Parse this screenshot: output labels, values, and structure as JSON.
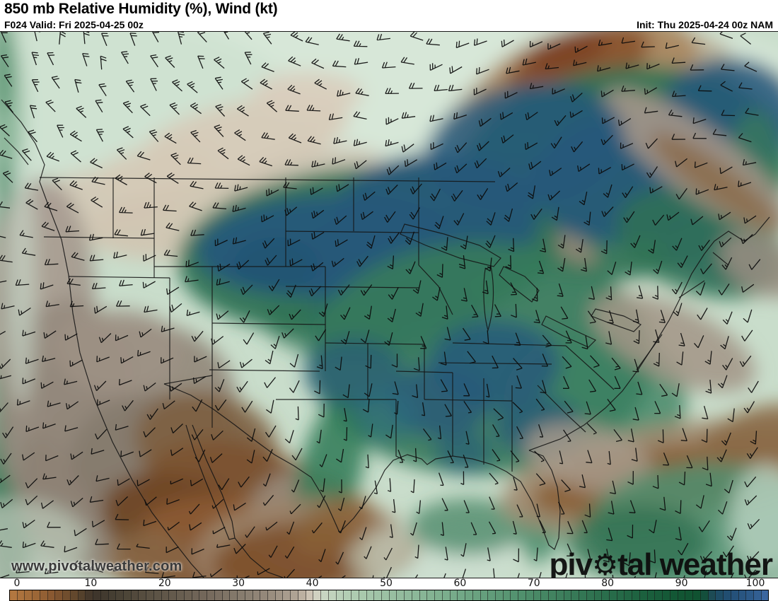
{
  "header": {
    "title": "850 mb Relative Humidity (%), Wind (kt)",
    "valid_label": "F024 Valid: Fri 2025-04-25 00z",
    "init_label": "Init: Thu 2025-04-24 00z NAM"
  },
  "map": {
    "watermark": "www.pivotalweather.com",
    "logo": {
      "left": "piv",
      "gear": "⚙",
      "right": "tal weather"
    },
    "wind": {
      "barb_color": "#0b0b0b",
      "grid_spacing": 34,
      "shaft_length": 19
    },
    "border_color": "#141414",
    "base_color": "#c9ddcb",
    "humidity_blobs": [
      [
        550,
        70,
        600,
        110,
        0,
        "#d7e7d8",
        1
      ],
      [
        160,
        140,
        280,
        160,
        0,
        "#cfe2d1",
        1
      ],
      [
        6,
        120,
        26,
        130,
        0,
        "#7fae90",
        0.85
      ],
      [
        4,
        44,
        18,
        70,
        0,
        "#55926f",
        0.7
      ],
      [
        8,
        480,
        26,
        300,
        0,
        "#4e8e6e",
        0.9
      ],
      [
        14,
        660,
        40,
        140,
        0,
        "#3b7d5c",
        0.85
      ],
      [
        345,
        150,
        150,
        52,
        -12,
        "#d7cab7",
        0.92
      ],
      [
        150,
        235,
        115,
        42,
        -6,
        "#d2c6b4",
        0.85
      ],
      [
        435,
        88,
        78,
        32,
        0,
        "#d9cdbc",
        0.9
      ],
      [
        305,
        262,
        185,
        55,
        -8,
        "#d0c4b1",
        0.92
      ],
      [
        432,
        212,
        115,
        42,
        -14,
        "#cdc1af",
        0.8
      ],
      [
        222,
        196,
        90,
        36,
        -10,
        "#d5c9b7",
        0.8
      ],
      [
        835,
        92,
        210,
        85,
        -14,
        "#b7a98f",
        0.85
      ],
      [
        828,
        62,
        165,
        70,
        -16,
        "#aa8962",
        0.95
      ],
      [
        818,
        42,
        105,
        48,
        -18,
        "#8a5530",
        0.95
      ],
      [
        800,
        30,
        60,
        26,
        -18,
        "#7c4423",
        0.9
      ],
      [
        880,
        200,
        240,
        150,
        -8,
        "#2f7254",
        0.92
      ],
      [
        895,
        205,
        150,
        92,
        -8,
        "#26587a",
        0.92
      ],
      [
        1032,
        118,
        98,
        82,
        0,
        "#26587a",
        0.88
      ],
      [
        1008,
        312,
        82,
        46,
        18,
        "#26587a",
        0.8
      ],
      [
        960,
        160,
        60,
        40,
        0,
        "#1f4e6e",
        0.5
      ],
      [
        992,
        300,
        125,
        72,
        18,
        "#2f7254",
        0.8
      ],
      [
        1068,
        200,
        40,
        90,
        0,
        "#3a7d5b",
        0.7
      ],
      [
        985,
        182,
        160,
        48,
        36,
        "#a39689",
        0.92
      ],
      [
        1012,
        212,
        112,
        26,
        36,
        "#8a6b49",
        0.85
      ],
      [
        1078,
        330,
        66,
        40,
        28,
        "#9b8e81",
        0.85
      ],
      [
        668,
        298,
        175,
        44,
        7,
        "#978977",
        0.92
      ],
      [
        662,
        300,
        132,
        26,
        7,
        "#6e5f50",
        0.9
      ],
      [
        520,
        310,
        270,
        120,
        -4,
        "#2f7254",
        0.95
      ],
      [
        462,
        302,
        185,
        72,
        -3,
        "#26587a",
        0.95
      ],
      [
        618,
        262,
        145,
        92,
        0,
        "#26587a",
        0.92
      ],
      [
        742,
        162,
        142,
        88,
        -10,
        "#26587a",
        0.85
      ],
      [
        560,
        398,
        122,
        62,
        0,
        "#26587a",
        0.85
      ],
      [
        470,
        420,
        100,
        42,
        8,
        "#2f7254",
        0.7
      ],
      [
        390,
        330,
        60,
        40,
        0,
        "#1f516f",
        0.6
      ],
      [
        680,
        462,
        245,
        165,
        0,
        "#367a5b",
        0.92
      ],
      [
        842,
        520,
        130,
        95,
        0,
        "#3d8262",
        0.8
      ],
      [
        700,
        470,
        92,
        62,
        0,
        "#26587a",
        0.8
      ],
      [
        622,
        522,
        72,
        52,
        0,
        "#26587a",
        0.78
      ],
      [
        762,
        558,
        62,
        42,
        0,
        "#26587a",
        0.72
      ],
      [
        656,
        594,
        40,
        30,
        0,
        "#26587a",
        0.6
      ],
      [
        952,
        440,
        125,
        52,
        24,
        "#a39688",
        0.88
      ],
      [
        58,
        392,
        78,
        185,
        0,
        "#a49a8e",
        0.95
      ],
      [
        96,
        542,
        100,
        165,
        0,
        "#978c80",
        0.95
      ],
      [
        136,
        644,
        112,
        122,
        0,
        "#8d8174",
        0.92
      ],
      [
        60,
        300,
        46,
        90,
        0,
        "#aaa094",
        0.85
      ],
      [
        30,
        350,
        20,
        180,
        0,
        "#cde0d0",
        0.6
      ],
      [
        192,
        520,
        142,
        112,
        0,
        "#93887b",
        0.92
      ],
      [
        232,
        602,
        132,
        92,
        0,
        "#867a6c",
        0.92
      ],
      [
        168,
        452,
        90,
        60,
        0,
        "#9d9285",
        0.85
      ],
      [
        292,
        582,
        102,
        72,
        10,
        "#7d5e3e",
        0.85
      ],
      [
        332,
        652,
        132,
        72,
        10,
        "#7c5331",
        0.92
      ],
      [
        262,
        702,
        122,
        72,
        18,
        "#6f4726",
        0.92
      ],
      [
        362,
        722,
        162,
        62,
        8,
        "#8a5a31",
        0.95
      ],
      [
        302,
        760,
        142,
        40,
        0,
        "#7c4e28",
        0.9
      ],
      [
        210,
        745,
        60,
        40,
        0,
        "#8a6a4a",
        0.8
      ],
      [
        318,
        712,
        16,
        22,
        0,
        "#9dc2a6",
        0.7
      ],
      [
        432,
        692,
        82,
        72,
        0,
        "#9a8d7e",
        0.88
      ],
      [
        482,
        748,
        112,
        44,
        -10,
        "#82572f",
        0.92
      ],
      [
        467,
        622,
        44,
        112,
        14,
        "#2f7a55",
        0.85
      ],
      [
        500,
        482,
        70,
        50,
        0,
        "#26587a",
        0.65
      ],
      [
        545,
        540,
        48,
        38,
        0,
        "#2d6a80",
        0.55
      ],
      [
        422,
        732,
        152,
        72,
        -6,
        "#9b8268",
        0.9
      ],
      [
        412,
        746,
        112,
        52,
        -6,
        "#7c4f2a",
        0.9
      ],
      [
        472,
        700,
        62,
        36,
        -28,
        "#8a6038",
        0.8
      ],
      [
        610,
        742,
        120,
        44,
        0,
        "#cfe0d2",
        0.6
      ],
      [
        662,
        700,
        84,
        40,
        0,
        "#3b7d5c",
        0.7
      ],
      [
        772,
        692,
        30,
        62,
        18,
        "#3f8563",
        0.8
      ],
      [
        952,
        628,
        245,
        72,
        -9,
        "#a08a70",
        0.92
      ],
      [
        942,
        632,
        192,
        46,
        -9,
        "#8a5f35",
        0.9
      ],
      [
        1062,
        582,
        92,
        46,
        -24,
        "#8a6a47",
        0.88
      ],
      [
        832,
        602,
        92,
        46,
        14,
        "#a79a8b",
        0.85
      ],
      [
        1002,
        702,
        172,
        92,
        0,
        "#4f8f70",
        0.85
      ],
      [
        902,
        722,
        102,
        52,
        0,
        "#2f7050",
        0.8
      ],
      [
        1085,
        688,
        52,
        78,
        0,
        "#cfe0d2",
        0.65
      ],
      [
        24,
        724,
        100,
        62,
        0,
        "#b6c2b3",
        0.8
      ]
    ]
  },
  "colorbar": {
    "unit": "%",
    "min": 0,
    "max": 100,
    "tick_step": 10,
    "ticks": [
      "0",
      "10",
      "20",
      "30",
      "40",
      "50",
      "60",
      "70",
      "80",
      "90",
      "100"
    ],
    "cell_count": 100,
    "stops": [
      [
        0,
        "#b57a41"
      ],
      [
        3,
        "#a06a38"
      ],
      [
        6,
        "#85562f"
      ],
      [
        9,
        "#5c452c"
      ],
      [
        11,
        "#3d342a"
      ],
      [
        14,
        "#474033"
      ],
      [
        18,
        "#584f41"
      ],
      [
        22,
        "#665c4e"
      ],
      [
        26,
        "#75695c"
      ],
      [
        30,
        "#857a6c"
      ],
      [
        34,
        "#968a7c"
      ],
      [
        38,
        "#b3a797"
      ],
      [
        40,
        "#d6ccbd"
      ],
      [
        41,
        "#ccd6c4"
      ],
      [
        44,
        "#b5cfb6"
      ],
      [
        48,
        "#a2c5a8"
      ],
      [
        52,
        "#92bb9d"
      ],
      [
        56,
        "#82b292"
      ],
      [
        60,
        "#70a685"
      ],
      [
        64,
        "#5f9a78"
      ],
      [
        68,
        "#4e8e6b"
      ],
      [
        72,
        "#40815e"
      ],
      [
        76,
        "#317452"
      ],
      [
        80,
        "#266a48"
      ],
      [
        84,
        "#1b5f3d"
      ],
      [
        88,
        "#125634"
      ],
      [
        91,
        "#0f5130"
      ],
      [
        92.5,
        "#1d4b55"
      ],
      [
        94,
        "#1f4c6d"
      ],
      [
        96,
        "#27537e"
      ],
      [
        98,
        "#2e5b8b"
      ],
      [
        100,
        "#3f6aa5"
      ]
    ]
  }
}
